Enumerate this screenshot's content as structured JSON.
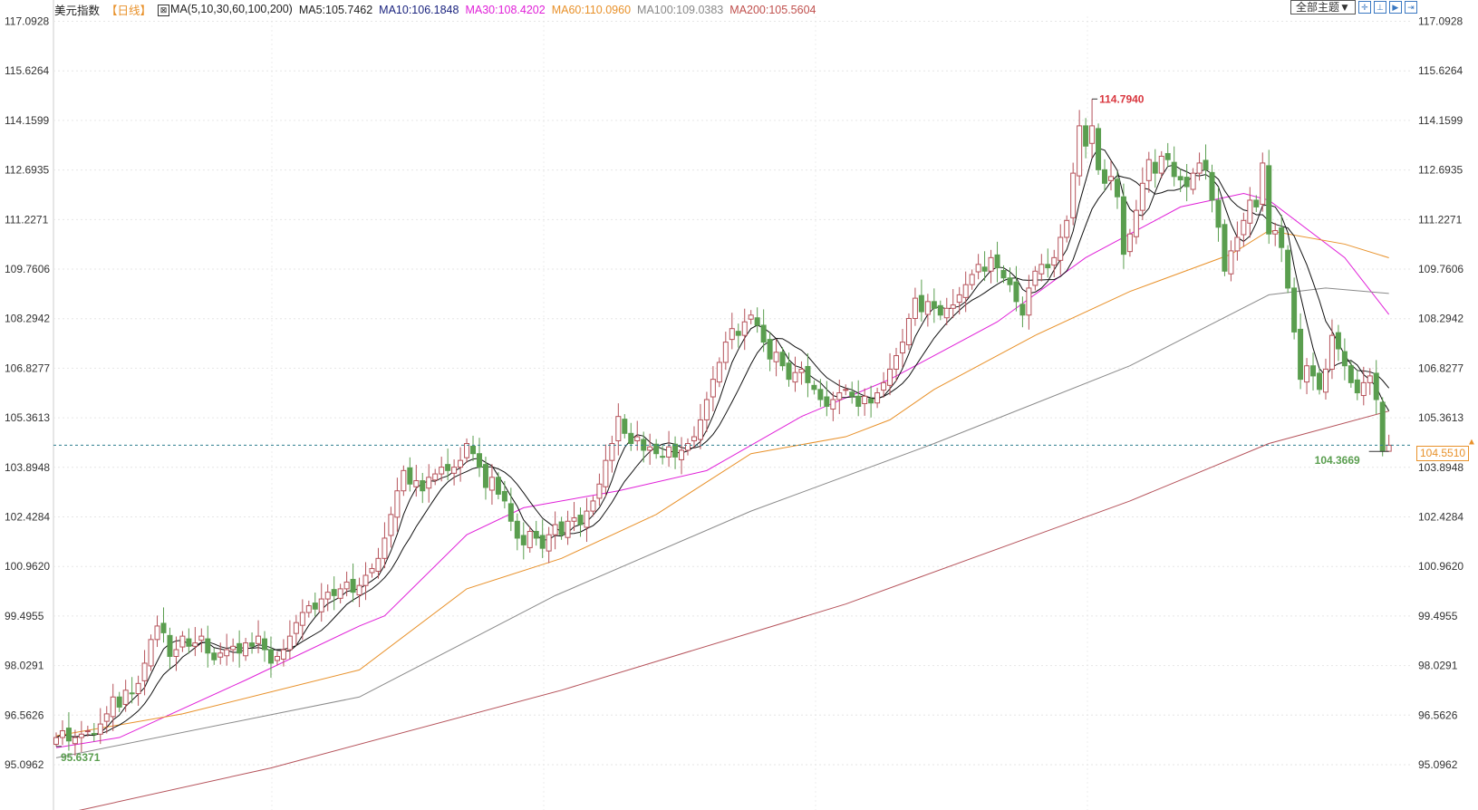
{
  "header": {
    "instrument": "美元指数",
    "period": "【日线】",
    "ma_icon": "ma-chart-icon",
    "ma_params": "MA(5,10,30,60,100,200)",
    "ma_values": [
      {
        "label": "MA5:105.7462",
        "color": "#222222"
      },
      {
        "label": "MA10:106.1848",
        "color": "#1a237e"
      },
      {
        "label": "MA30:108.4202",
        "color": "#e020d8"
      },
      {
        "label": "MA60:110.0960",
        "color": "#e8912a"
      },
      {
        "label": "MA100:109.0383",
        "color": "#888888"
      },
      {
        "label": "MA200:105.5604",
        "color": "#c0504d"
      }
    ]
  },
  "toolbar": {
    "theme_label": "全部主题▼",
    "icons": [
      "crosshair-icon",
      "zoom-range-icon",
      "step-forward-icon",
      "scroll-right-icon"
    ]
  },
  "colors": {
    "up": "#b5525a",
    "down": "#5a9e4f",
    "price_line": "#2f7f8f",
    "price_box": "#e8912a",
    "high_label": "#d9363e",
    "low_label": "#5a9e4f"
  },
  "chart_data": {
    "type": "candlestick",
    "ylim": [
      93.7,
      118.2
    ],
    "y_ticks": [
      "117.0928",
      "115.6264",
      "114.1599",
      "112.6935",
      "111.2271",
      "109.7606",
      "108.2942",
      "106.8277",
      "105.3613",
      "103.8948",
      "102.4284",
      "100.9620",
      "99.4955",
      "98.0291",
      "96.5626",
      "95.0962"
    ],
    "closes": [
      95.9,
      96.1,
      95.8,
      95.9,
      96.0,
      96.1,
      96.0,
      96.3,
      96.6,
      97.1,
      96.8,
      97.3,
      97.2,
      97.5,
      98.1,
      98.8,
      99.2,
      99.0,
      98.3,
      98.5,
      98.9,
      98.6,
      98.7,
      98.9,
      98.4,
      98.2,
      98.4,
      98.5,
      98.6,
      98.4,
      98.7,
      98.6,
      98.9,
      98.5,
      98.1,
      98.3,
      98.5,
      98.9,
      99.3,
      99.6,
      99.8,
      99.7,
      100.0,
      100.2,
      100.1,
      100.3,
      100.5,
      100.2,
      100.4,
      100.7,
      100.9,
      101.2,
      101.8,
      102.5,
      103.2,
      103.8,
      103.4,
      103.5,
      103.2,
      103.6,
      103.7,
      103.9,
      103.8,
      103.9,
      104.1,
      104.6,
      104.3,
      103.9,
      103.3,
      103.6,
      103.1,
      102.9,
      102.3,
      101.8,
      101.6,
      102.0,
      101.8,
      101.5,
      101.9,
      102.2,
      101.9,
      102.3,
      102.4,
      102.2,
      102.6,
      102.9,
      103.4,
      104.1,
      104.6,
      105.4,
      104.9,
      104.6,
      104.8,
      104.4,
      104.5,
      104.3,
      104.2,
      104.5,
      104.2,
      104.4,
      104.6,
      104.8,
      105.3,
      105.9,
      106.5,
      107.0,
      107.6,
      108.0,
      107.8,
      108.2,
      108.4,
      108.1,
      107.6,
      107.1,
      107.3,
      106.9,
      106.5,
      106.7,
      106.8,
      106.4,
      106.2,
      105.9,
      105.7,
      105.9,
      106.1,
      106.2,
      106.0,
      105.7,
      106.0,
      105.8,
      106.1,
      106.4,
      106.8,
      107.2,
      107.6,
      108.3,
      108.9,
      108.5,
      108.8,
      108.6,
      108.4,
      108.6,
      108.7,
      109.0,
      109.3,
      109.6,
      109.9,
      109.7,
      110.1,
      109.8,
      109.5,
      109.3,
      108.8,
      108.4,
      109.2,
      109.7,
      109.9,
      109.8,
      110.1,
      110.7,
      111.2,
      112.6,
      114.0,
      113.4,
      114.0,
      112.7,
      112.3,
      112.5,
      111.9,
      110.2,
      110.8,
      111.5,
      112.3,
      113.0,
      112.6,
      113.1,
      113.0,
      112.5,
      112.4,
      112.2,
      112.6,
      112.9,
      112.7,
      111.8,
      111.0,
      109.7,
      110.3,
      110.7,
      111.2,
      111.8,
      111.6,
      112.9,
      110.8,
      110.9,
      110.4,
      109.2,
      107.9,
      106.5,
      106.9,
      106.6,
      106.2,
      106.8,
      107.8,
      107.4,
      106.9,
      106.4,
      106.1,
      106.4,
      106.6,
      105.9,
      104.37,
      104.55
    ],
    "ma_lines": [
      {
        "name": "MA30",
        "color": "#e020d8",
        "points": [
          [
            0,
            95.6
          ],
          [
            10,
            95.9
          ],
          [
            30,
            97.6
          ],
          [
            48,
            99.2
          ],
          [
            52,
            99.5
          ],
          [
            65,
            101.9
          ],
          [
            74,
            102.7
          ],
          [
            89,
            103.2
          ],
          [
            103,
            103.8
          ],
          [
            118,
            105.4
          ],
          [
            132,
            106.5
          ],
          [
            149,
            108.2
          ],
          [
            163,
            110.1
          ],
          [
            178,
            111.6
          ],
          [
            188,
            112.0
          ],
          [
            192,
            111.8
          ],
          [
            204,
            110.1
          ],
          [
            211,
            108.42
          ]
        ]
      },
      {
        "name": "MA60",
        "color": "#e8912a",
        "points": [
          [
            0,
            95.95
          ],
          [
            20,
            96.6
          ],
          [
            48,
            97.9
          ],
          [
            65,
            100.3
          ],
          [
            80,
            101.2
          ],
          [
            95,
            102.5
          ],
          [
            110,
            104.3
          ],
          [
            125,
            104.8
          ],
          [
            132,
            105.3
          ],
          [
            139,
            106.2
          ],
          [
            155,
            107.8
          ],
          [
            170,
            109.1
          ],
          [
            186,
            110.2
          ],
          [
            192,
            110.9
          ],
          [
            204,
            110.5
          ],
          [
            211,
            110.096
          ]
        ]
      },
      {
        "name": "MA100",
        "color": "#8a8a8a",
        "points": [
          [
            0,
            95.3
          ],
          [
            48,
            97.1
          ],
          [
            79,
            100.1
          ],
          [
            110,
            102.6
          ],
          [
            139,
            104.6
          ],
          [
            170,
            106.9
          ],
          [
            192,
            109.0
          ],
          [
            201,
            109.2
          ],
          [
            211,
            109.04
          ]
        ]
      },
      {
        "name": "MA200",
        "color": "#b5525a",
        "points": [
          [
            0,
            93.6
          ],
          [
            5,
            93.8
          ],
          [
            34,
            95.0
          ],
          [
            80,
            97.3
          ],
          [
            125,
            99.85
          ],
          [
            170,
            102.9
          ],
          [
            192,
            104.6
          ],
          [
            211,
            105.56
          ]
        ]
      }
    ],
    "high": {
      "index": 164,
      "label": "114.7940",
      "value": 114.794
    },
    "low": {
      "index": 0,
      "label": "95.6371",
      "value": 95.6371
    },
    "recent_low": {
      "index": 211,
      "label": "104.3669",
      "value": 104.3669
    },
    "last_price": {
      "label": "104.5510",
      "value": 104.551
    }
  }
}
